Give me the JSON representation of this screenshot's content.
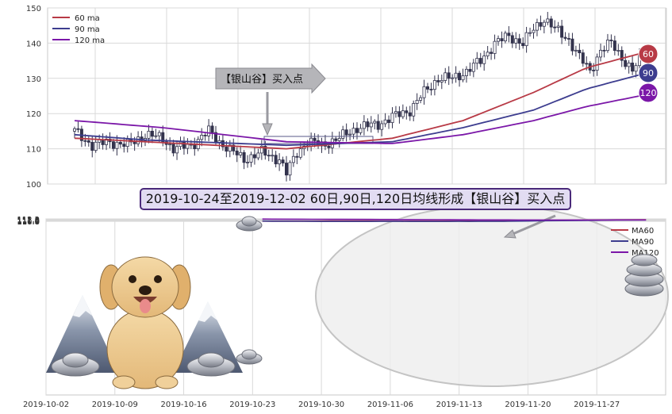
{
  "colors": {
    "ma60": "#b83a46",
    "ma90": "#3d3d8f",
    "ma120": "#7b17a8",
    "bull": "#ffffff",
    "bear": "#33334d",
    "grid": "#d9d9d9",
    "band": "#8a8a9e"
  },
  "top_chart": {
    "legend": [
      "60 ma",
      "90 ma",
      "120 ma"
    ],
    "arrow_label": "【银山谷】买入点",
    "badges": [
      "60",
      "90",
      "120"
    ]
  },
  "banner": "2019-10-24至2019-12-02 60日,90日,120日均线形成【银山谷】买入点",
  "icons": [
    "silver-ingot-icon",
    "dog-illustration-icon",
    "mountain-icon"
  ],
  "chart_data": [
    {
      "type": "candlestick",
      "title": "",
      "ylim": [
        100,
        150
      ],
      "y_ticks": [
        100,
        110,
        120,
        130,
        140,
        150
      ],
      "grid": true,
      "legend_placement": "top-left",
      "series_names": [
        "60 ma",
        "90 ma",
        "120 ma"
      ],
      "close_anchors": [
        [
          0,
          115
        ],
        [
          5,
          111
        ],
        [
          10,
          112
        ],
        [
          15,
          111
        ],
        [
          20,
          114
        ],
        [
          25,
          113
        ],
        [
          28,
          110
        ],
        [
          33,
          111
        ],
        [
          38,
          115
        ],
        [
          41,
          112
        ],
        [
          45,
          109
        ],
        [
          48,
          107
        ],
        [
          53,
          109
        ],
        [
          58,
          107
        ],
        [
          60,
          103
        ],
        [
          63,
          109
        ],
        [
          66,
          112
        ],
        [
          70,
          111
        ],
        [
          75,
          113
        ],
        [
          80,
          116
        ],
        [
          86,
          117
        ],
        [
          90,
          119
        ],
        [
          95,
          121
        ],
        [
          99,
          126
        ],
        [
          103,
          130
        ],
        [
          107,
          130
        ],
        [
          111,
          132
        ],
        [
          115,
          135
        ],
        [
          119,
          140
        ],
        [
          123,
          142
        ],
        [
          127,
          140
        ],
        [
          130,
          144
        ],
        [
          133,
          147
        ],
        [
          136,
          144
        ],
        [
          140,
          141
        ],
        [
          143,
          136
        ],
        [
          146,
          132
        ],
        [
          149,
          138
        ],
        [
          152,
          140
        ],
        [
          155,
          136
        ],
        [
          158,
          132
        ],
        [
          160,
          135
        ]
      ],
      "ma60_anchors": [
        [
          0,
          113
        ],
        [
          20,
          112
        ],
        [
          60,
          110
        ],
        [
          90,
          113
        ],
        [
          110,
          118
        ],
        [
          130,
          126
        ],
        [
          145,
          133
        ],
        [
          160,
          137
        ]
      ],
      "ma90_anchors": [
        [
          0,
          114
        ],
        [
          20,
          112.5
        ],
        [
          60,
          111
        ],
        [
          90,
          112
        ],
        [
          110,
          116
        ],
        [
          130,
          121
        ],
        [
          145,
          127
        ],
        [
          160,
          131
        ]
      ],
      "ma120_anchors": [
        [
          0,
          118
        ],
        [
          25,
          116
        ],
        [
          60,
          112
        ],
        [
          90,
          111.5
        ],
        [
          110,
          114
        ],
        [
          130,
          118
        ],
        [
          145,
          122
        ],
        [
          160,
          125
        ]
      ],
      "n_bars": 161
    },
    {
      "type": "line",
      "title": "",
      "x": [
        "2019-10-24",
        "2019-10-25",
        "2019-10-28",
        "2019-10-29",
        "2019-10-30",
        "2019-10-31",
        "2019-11-01",
        "2019-11-04",
        "2019-11-05",
        "2019-11-06",
        "2019-11-07",
        "2019-11-08",
        "2019-11-11",
        "2019-11-12",
        "2019-11-13",
        "2019-11-14",
        "2019-11-15",
        "2019-11-18",
        "2019-11-19",
        "2019-11-20",
        "2019-11-21",
        "2019-11-22",
        "2019-11-25",
        "2019-11-26",
        "2019-11-27",
        "2019-11-28",
        "2019-11-29",
        "2019-12-02"
      ],
      "x_ticks": [
        "2019-10-02",
        "2019-10-09",
        "2019-10-16",
        "2019-10-23",
        "2019-10-30",
        "2019-11-06",
        "2019-11-13",
        "2019-11-20",
        "2019-11-27"
      ],
      "x_range": [
        "2019-10-02",
        "2019-12-04"
      ],
      "ylim": [
        10.78,
        112.22
      ],
      "y_ticks": [
        110.8,
        111.0,
        111.2,
        111.4,
        111.6,
        111.8,
        112.0,
        112.2
      ],
      "grid": true,
      "legend_placement": "top-right",
      "series": [
        {
          "name": "MA60",
          "values": [
            110.93,
            110.92,
            110.93,
            110.95,
            110.99,
            111.01,
            111.04,
            111.02,
            111.0,
            110.97,
            110.94,
            110.97,
            111.03,
            111.07,
            111.08,
            111.11,
            111.12,
            111.15,
            111.23,
            111.28,
            111.34,
            111.4,
            111.46,
            111.53,
            111.57,
            111.61,
            111.66,
            111.71
          ]
        },
        {
          "name": "MA90",
          "values": [
            110.97,
            110.89,
            110.84,
            110.8,
            110.78,
            110.76,
            110.76,
            110.78,
            110.79,
            110.8,
            110.79,
            110.78,
            110.77,
            110.78,
            110.79,
            110.77,
            110.8,
            110.86,
            110.92,
            111.0,
            111.07,
            111.15,
            111.24,
            111.33,
            111.42,
            111.5,
            111.57,
            111.63
          ]
        },
        {
          "name": "MA120",
          "values": [
            112.14,
            112.08,
            112.04,
            112.0,
            111.98,
            111.96,
            111.93,
            111.9,
            111.87,
            111.85,
            111.82,
            111.79,
            111.76,
            111.72,
            111.69,
            111.66,
            111.63,
            111.61,
            111.6,
            111.59,
            111.58,
            111.58,
            111.57,
            111.57,
            111.58,
            111.6,
            111.62,
            111.64
          ]
        }
      ]
    }
  ]
}
